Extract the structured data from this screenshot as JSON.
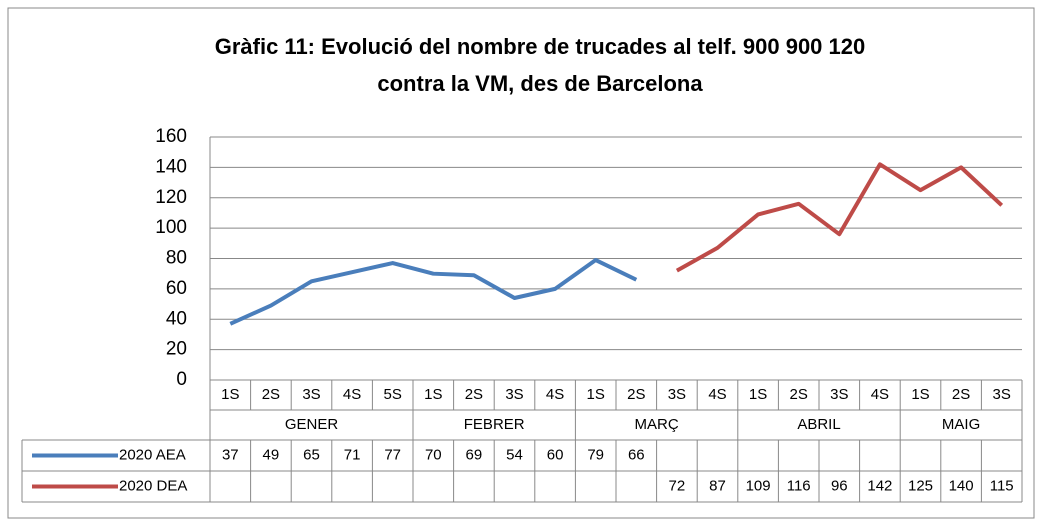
{
  "chart_data": {
    "type": "line",
    "title": [
      "Gràfic 11: Evolució del nombre de trucades al telf. 900 900 120",
      "contra la VM, des de Barcelona"
    ],
    "groups": [
      {
        "name": "GENER",
        "categories": [
          "1S",
          "2S",
          "3S",
          "4S",
          "5S"
        ]
      },
      {
        "name": "FEBRER",
        "categories": [
          "1S",
          "2S",
          "3S",
          "4S"
        ]
      },
      {
        "name": "MARÇ",
        "categories": [
          "1S",
          "2S",
          "3S",
          "4S"
        ]
      },
      {
        "name": "ABRIL",
        "categories": [
          "1S",
          "2S",
          "3S",
          "4S"
        ]
      },
      {
        "name": "MAIG",
        "categories": [
          "1S",
          "2S",
          "3S"
        ]
      }
    ],
    "series": [
      {
        "name": "2020 AEA",
        "color": "#4a7ebb",
        "values": [
          37,
          49,
          65,
          71,
          77,
          70,
          69,
          54,
          60,
          79,
          66,
          null,
          null,
          null,
          null,
          null,
          null,
          null,
          null,
          null
        ]
      },
      {
        "name": "2020 DEA",
        "color": "#be4b48",
        "values": [
          null,
          null,
          null,
          null,
          null,
          null,
          null,
          null,
          null,
          null,
          null,
          72,
          87,
          109,
          116,
          96,
          142,
          125,
          140,
          115
        ]
      }
    ],
    "ylim": [
      0,
      160
    ],
    "yticks": [
      0,
      20,
      40,
      60,
      80,
      100,
      120,
      140,
      160
    ],
    "grid": true
  }
}
